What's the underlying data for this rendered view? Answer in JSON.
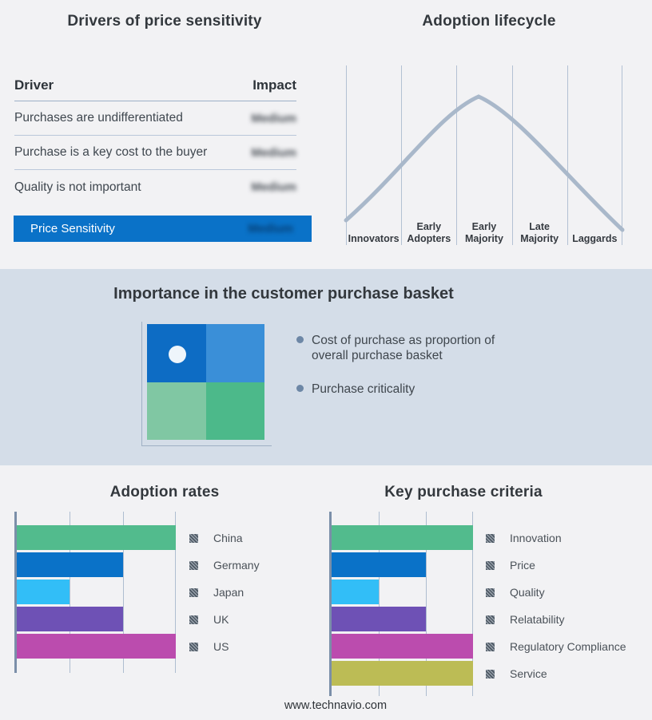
{
  "drivers": {
    "title": "Drivers of price sensitivity",
    "columns": {
      "driver": "Driver",
      "impact": "Impact"
    },
    "rows": [
      {
        "driver": "Purchases are undifferentiated",
        "impact": "Medium",
        "impact_redacted": true
      },
      {
        "driver": "Purchase is a key cost to the buyer",
        "impact": "Medium",
        "impact_redacted": true
      },
      {
        "driver": "Quality is not important",
        "impact": "Medium",
        "impact_redacted": true
      }
    ],
    "summary": {
      "label": "Price Sensitivity",
      "impact": "Medium",
      "impact_redacted": true
    },
    "accent_color": "#0a72c8"
  },
  "lifecycle": {
    "title": "Adoption lifecycle",
    "stages": [
      "Innovators",
      "Early Adopters",
      "Early Majority",
      "Late Majority",
      "Laggards"
    ],
    "curve_color": "#a9b8ca",
    "gridline_color": "#b3c1d3"
  },
  "basket": {
    "title": "Importance in the customer purchase basket",
    "bullets": [
      "Cost of purchase as proportion of overall purchase basket",
      "Purchase criticality"
    ],
    "background": "#d4dde8",
    "quadrant_colors": {
      "top_left": "#0d6cc4",
      "top_right": "#3a8fd8",
      "bottom_left": "#80c7a3",
      "bottom_right": "#4cb98a"
    },
    "marker": "white dot in top-left quadrant"
  },
  "adoption_rates": {
    "title": "Adoption rates",
    "categories": [
      "China",
      "Germany",
      "Japan",
      "UK",
      "US"
    ],
    "values": [
      3,
      2,
      1,
      2,
      3
    ],
    "colors": [
      "#52bb8d",
      "#0a72c8",
      "#32bef7",
      "#6e51b5",
      "#bb4cae"
    ],
    "max": 3
  },
  "key_purchase_criteria": {
    "title": "Key purchase criteria",
    "categories": [
      "Innovation",
      "Price",
      "Quality",
      "Relatability",
      "Regulatory Compliance",
      "Service"
    ],
    "values": [
      3,
      2,
      1,
      2,
      3,
      3
    ],
    "colors": [
      "#52bb8d",
      "#0a72c8",
      "#32bef7",
      "#6e51b5",
      "#bb4cae",
      "#bcbc55"
    ],
    "max": 3
  },
  "footer": {
    "url": "www.technavio.com"
  },
  "chart_data": [
    {
      "type": "line",
      "title": "Adoption lifecycle",
      "x_categories": [
        "Innovators",
        "Early Adopters",
        "Early Majority",
        "Late Majority",
        "Laggards"
      ],
      "curve": "bell curve, unlabeled y-axis",
      "points_norm": [
        [
          0.0,
          0.14
        ],
        [
          0.2,
          0.4
        ],
        [
          0.4,
          0.72
        ],
        [
          0.48,
          0.83
        ],
        [
          0.6,
          0.74
        ],
        [
          0.8,
          0.42
        ],
        [
          1.0,
          0.08
        ]
      ],
      "grid": "vertical gridlines between stages",
      "legend": "none"
    },
    {
      "type": "bar",
      "title": "Adoption rates",
      "orientation": "horizontal",
      "categories": [
        "China",
        "Germany",
        "Japan",
        "UK",
        "US"
      ],
      "values": [
        3,
        2,
        1,
        2,
        3
      ],
      "xlim": [
        0,
        3
      ],
      "xlabel": "",
      "ylabel": "",
      "axis_tick_labels": "none (unlabeled gridlines at 1, 2, 3)",
      "legend_position": "right",
      "legend_swatch": "hatched (redacted)"
    },
    {
      "type": "bar",
      "title": "Key purchase criteria",
      "orientation": "horizontal",
      "categories": [
        "Innovation",
        "Price",
        "Quality",
        "Relatability",
        "Regulatory Compliance",
        "Service"
      ],
      "values": [
        3,
        2,
        1,
        2,
        3,
        3
      ],
      "xlim": [
        0,
        3
      ],
      "xlabel": "",
      "ylabel": "",
      "axis_tick_labels": "none (unlabeled gridlines at 1, 2, 3)",
      "legend_position": "right",
      "legend_swatch": "hatched (redacted)"
    },
    {
      "type": "table",
      "title": "Drivers of price sensitivity",
      "columns": [
        "Driver",
        "Impact"
      ],
      "rows": [
        [
          "Purchases are undifferentiated",
          "Medium (blurred)"
        ],
        [
          "Purchase is a key cost to the buyer",
          "Medium (blurred)"
        ],
        [
          "Quality is not important",
          "Medium (blurred)"
        ],
        [
          "Price Sensitivity",
          "Medium (blurred, highlighted blue row)"
        ]
      ]
    }
  ]
}
